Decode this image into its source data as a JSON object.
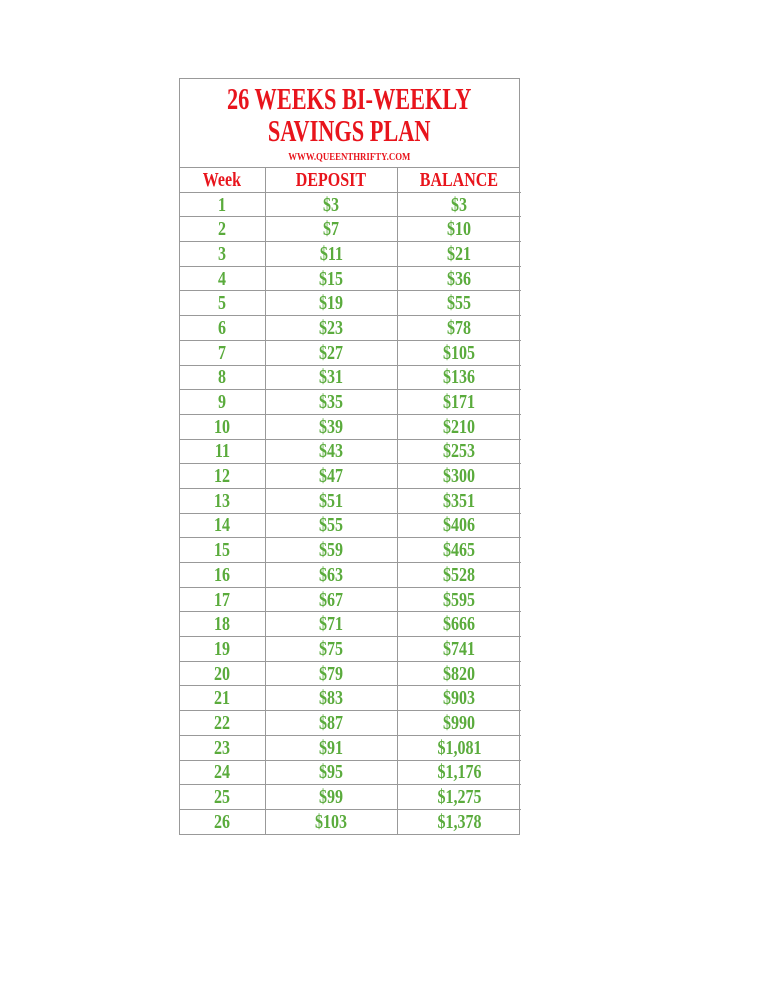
{
  "header": {
    "title": "26 WEEKS BI-WEEKLY SAVINGS PLAN",
    "subtitle": "WWW.QUEENTHRIFTY.COM"
  },
  "table": {
    "columns": [
      "Week",
      "DEPOSIT",
      "BALANCE"
    ],
    "rows": [
      [
        "1",
        "$3",
        "$3"
      ],
      [
        "2",
        "$7",
        "$10"
      ],
      [
        "3",
        "$11",
        "$21"
      ],
      [
        "4",
        "$15",
        "$36"
      ],
      [
        "5",
        "$19",
        "$55"
      ],
      [
        "6",
        "$23",
        "$78"
      ],
      [
        "7",
        "$27",
        "$105"
      ],
      [
        "8",
        "$31",
        "$136"
      ],
      [
        "9",
        "$35",
        "$171"
      ],
      [
        "10",
        "$39",
        "$210"
      ],
      [
        "11",
        "$43",
        "$253"
      ],
      [
        "12",
        "$47",
        "$300"
      ],
      [
        "13",
        "$51",
        "$351"
      ],
      [
        "14",
        "$55",
        "$406"
      ],
      [
        "15",
        "$59",
        "$465"
      ],
      [
        "16",
        "$63",
        "$528"
      ],
      [
        "17",
        "$67",
        "$595"
      ],
      [
        "18",
        "$71",
        "$666"
      ],
      [
        "19",
        "$75",
        "$741"
      ],
      [
        "20",
        "$79",
        "$820"
      ],
      [
        "21",
        "$83",
        "$903"
      ],
      [
        "22",
        "$87",
        "$990"
      ],
      [
        "23",
        "$91",
        "$1,081"
      ],
      [
        "24",
        "$95",
        "$1,176"
      ],
      [
        "25",
        "$99",
        "$1,275"
      ],
      [
        "26",
        "$103",
        "$1,378"
      ]
    ]
  }
}
